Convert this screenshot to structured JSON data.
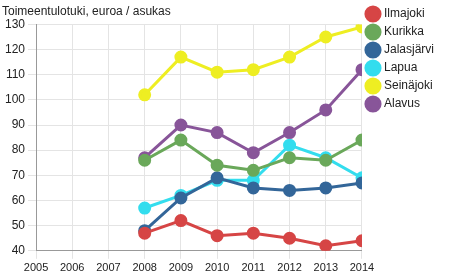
{
  "chart_data": {
    "type": "line",
    "title": "Toimeentulotuki, euroa / asukas",
    "categories": [
      "2005",
      "2006",
      "2007",
      "2008",
      "2009",
      "2010",
      "2011",
      "2012",
      "2013",
      "2014"
    ],
    "series": [
      {
        "name": "Ilmajoki",
        "color": "#d64545",
        "values": [
          null,
          null,
          null,
          47,
          52,
          46,
          47,
          45,
          42,
          44
        ]
      },
      {
        "name": "Kurikka",
        "color": "#6aa85a",
        "values": [
          null,
          null,
          null,
          76,
          84,
          74,
          72,
          77,
          76,
          84
        ]
      },
      {
        "name": "Jalasjärvi",
        "color": "#336699",
        "values": [
          null,
          null,
          null,
          48,
          61,
          69,
          65,
          64,
          65,
          67
        ]
      },
      {
        "name": "Lapua",
        "color": "#33ddee",
        "values": [
          null,
          null,
          null,
          57,
          62,
          68,
          68,
          82,
          77,
          69
        ]
      },
      {
        "name": "Seinäjoki",
        "color": "#eeee22",
        "values": [
          null,
          null,
          null,
          102,
          117,
          111,
          112,
          117,
          125,
          129
        ]
      },
      {
        "name": "Alavus",
        "color": "#885599",
        "values": [
          null,
          null,
          null,
          77,
          90,
          87,
          79,
          87,
          96,
          112
        ]
      }
    ],
    "ylim": [
      40,
      130
    ],
    "yticks": [
      40,
      50,
      60,
      70,
      80,
      90,
      100,
      110,
      120,
      130
    ],
    "grid": true,
    "legend": "right",
    "marker": "circle",
    "line_style": "solid"
  }
}
